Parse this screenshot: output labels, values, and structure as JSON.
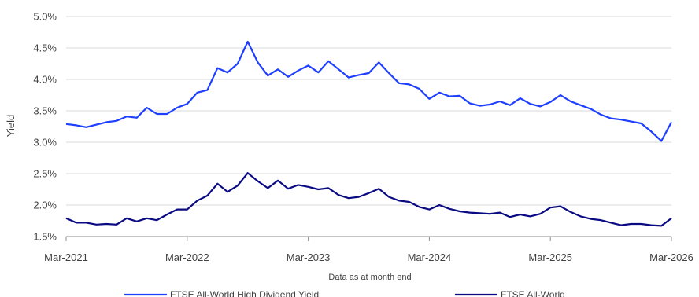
{
  "chart_data": {
    "type": "line",
    "title": "",
    "ylabel": "Yield",
    "xlabel": "Data as at month end",
    "ylim": [
      1.5,
      5.0
    ],
    "y_ticks": [
      "1.5%",
      "2.0%",
      "2.5%",
      "3.0%",
      "3.5%",
      "4.0%",
      "4.5%",
      "5.0%"
    ],
    "x_ticks": [
      "Mar-2021",
      "Mar-2022",
      "Mar-2023",
      "Mar-2024",
      "Mar-2025",
      "Mar-2026"
    ],
    "grid": "horizontal",
    "legend_position": "bottom",
    "x_start": "Mar-2021",
    "x_end": "Mar-2026",
    "series": [
      {
        "name": "FTSE All-World High Dividend Yield",
        "color": "#1f3fff",
        "values": [
          3.29,
          3.27,
          3.24,
          3.28,
          3.32,
          3.34,
          3.41,
          3.39,
          3.55,
          3.45,
          3.45,
          3.55,
          3.61,
          3.79,
          3.83,
          4.18,
          4.11,
          4.25,
          4.6,
          4.27,
          4.06,
          4.16,
          4.04,
          4.14,
          4.22,
          4.11,
          4.29,
          4.16,
          4.03,
          4.07,
          4.1,
          4.27,
          4.1,
          3.94,
          3.92,
          3.85,
          3.69,
          3.79,
          3.73,
          3.74,
          3.62,
          3.58,
          3.6,
          3.65,
          3.59,
          3.7,
          3.61,
          3.57,
          3.64,
          3.75,
          3.65,
          3.59,
          3.53,
          3.44,
          3.38,
          3.36,
          3.33,
          3.3,
          3.17,
          3.02,
          3.32
        ]
      },
      {
        "name": "FTSE All-World",
        "color": "#0a0a82",
        "values": [
          1.79,
          1.72,
          1.72,
          1.69,
          1.7,
          1.69,
          1.79,
          1.74,
          1.79,
          1.76,
          1.85,
          1.93,
          1.93,
          2.07,
          2.15,
          2.34,
          2.21,
          2.31,
          2.51,
          2.38,
          2.27,
          2.39,
          2.26,
          2.32,
          2.29,
          2.25,
          2.27,
          2.16,
          2.11,
          2.13,
          2.19,
          2.26,
          2.13,
          2.07,
          2.05,
          1.97,
          1.93,
          2.0,
          1.94,
          1.9,
          1.88,
          1.87,
          1.86,
          1.88,
          1.81,
          1.85,
          1.82,
          1.86,
          1.96,
          1.98,
          1.89,
          1.82,
          1.78,
          1.76,
          1.72,
          1.68,
          1.7,
          1.7,
          1.68,
          1.67,
          1.79
        ]
      }
    ]
  }
}
